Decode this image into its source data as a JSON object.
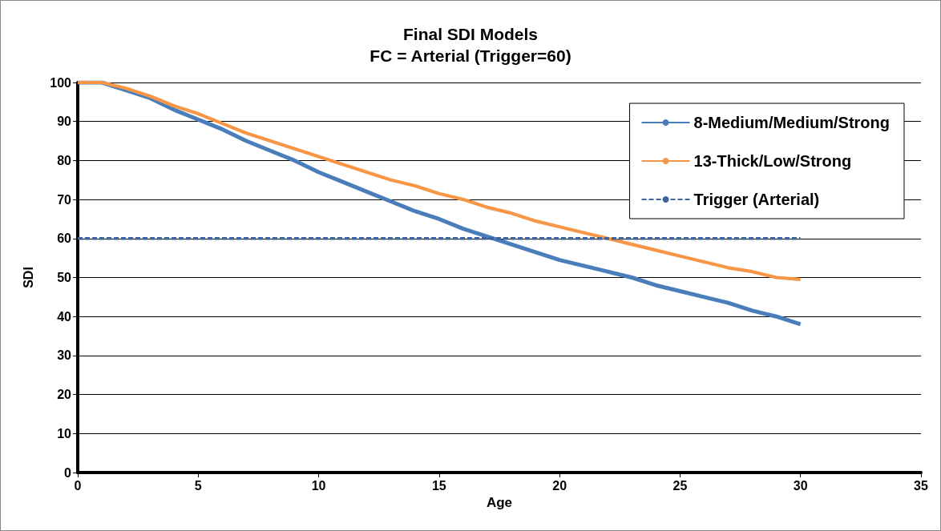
{
  "chart_data": {
    "type": "line",
    "title": "Final SDI Models",
    "subtitle": "FC = Arterial (Trigger=60)",
    "xlabel": "Age",
    "ylabel": "SDI",
    "x": [
      0,
      1,
      2,
      3,
      4,
      5,
      6,
      7,
      8,
      9,
      10,
      11,
      12,
      13,
      14,
      15,
      16,
      17,
      18,
      19,
      20,
      21,
      22,
      23,
      24,
      25,
      26,
      27,
      28,
      29,
      30
    ],
    "series": [
      {
        "name": "8-Medium/Medium/Strong",
        "color": "#4a7ebb",
        "values": [
          100,
          100,
          98,
          96,
          93,
          90.5,
          88,
          85,
          82.5,
          80,
          77,
          74.5,
          72,
          69.5,
          67,
          65,
          62.5,
          60.5,
          58.5,
          56.5,
          54.5,
          53,
          51.5,
          50,
          48,
          46.5,
          45,
          43.5,
          41.5,
          40,
          38
        ]
      },
      {
        "name": "13-Thick/Low/Strong",
        "color": "#f79646",
        "values": [
          100,
          100,
          98.5,
          96.5,
          94,
          92,
          89.5,
          87,
          85,
          83,
          81,
          79,
          77,
          75,
          73.5,
          71.5,
          70,
          68,
          66.5,
          64.5,
          63,
          61.5,
          60,
          58.5,
          57,
          55.5,
          54,
          52.5,
          51.5,
          50,
          49.5
        ]
      },
      {
        "name": "Trigger (Arterial)",
        "color": "#3b64a0",
        "x": [
          0,
          30
        ],
        "values": [
          60,
          60
        ],
        "line_style": "dashed"
      }
    ],
    "xlim": [
      0,
      35
    ],
    "xticks": [
      0,
      5,
      10,
      15,
      20,
      25,
      30,
      35
    ],
    "ylim": [
      0,
      100
    ],
    "yticks": [
      0,
      10,
      20,
      30,
      40,
      50,
      60,
      70,
      80,
      90,
      100
    ],
    "grid": "y",
    "legend": "top right",
    "marker": "none",
    "line_style": "solid"
  }
}
